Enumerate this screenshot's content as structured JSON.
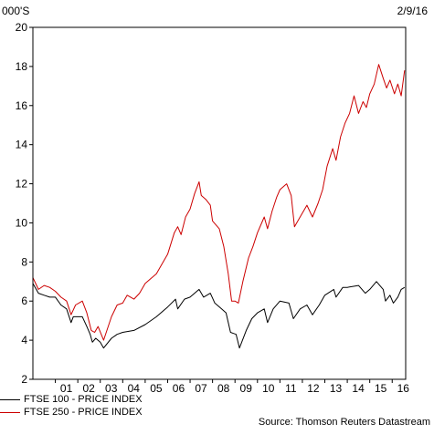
{
  "chart_data": {
    "type": "line",
    "unit_label": "000'S",
    "date_label": "2/9/16",
    "ylim": [
      2,
      20
    ],
    "yticks": [
      2,
      4,
      6,
      8,
      10,
      12,
      14,
      16,
      18,
      20
    ],
    "xlim": [
      2000.0,
      2016.6
    ],
    "xtick_labels": [
      {
        "label": "01",
        "x": 2001
      },
      {
        "label": "02",
        "x": 2002
      },
      {
        "label": "03",
        "x": 2003
      },
      {
        "label": "04",
        "x": 2004
      },
      {
        "label": "05",
        "x": 2005
      },
      {
        "label": "06",
        "x": 2006
      },
      {
        "label": "07",
        "x": 2007
      },
      {
        "label": "08",
        "x": 2008
      },
      {
        "label": "09",
        "x": 2009
      },
      {
        "label": "10",
        "x": 2010
      },
      {
        "label": "11",
        "x": 2011
      },
      {
        "label": "12",
        "x": 2012
      },
      {
        "label": "13",
        "x": 2013
      },
      {
        "label": "14",
        "x": 2014
      },
      {
        "label": "15",
        "x": 2015
      },
      {
        "label": "16",
        "x": 2016
      }
    ],
    "series": [
      {
        "name": "FTSE 100 - PRICE INDEX",
        "color": "#000000",
        "points": [
          [
            2000.0,
            6.9
          ],
          [
            2000.25,
            6.4
          ],
          [
            2000.5,
            6.3
          ],
          [
            2000.75,
            6.2
          ],
          [
            2001.0,
            6.2
          ],
          [
            2001.25,
            5.8
          ],
          [
            2001.5,
            5.6
          ],
          [
            2001.7,
            4.9
          ],
          [
            2001.8,
            5.2
          ],
          [
            2001.95,
            5.2
          ],
          [
            2002.2,
            5.2
          ],
          [
            2002.4,
            4.7
          ],
          [
            2002.55,
            4.3
          ],
          [
            2002.65,
            3.9
          ],
          [
            2002.8,
            4.1
          ],
          [
            2003.0,
            3.9
          ],
          [
            2003.15,
            3.6
          ],
          [
            2003.5,
            4.1
          ],
          [
            2003.75,
            4.3
          ],
          [
            2004.0,
            4.4
          ],
          [
            2004.5,
            4.5
          ],
          [
            2005.0,
            4.8
          ],
          [
            2005.5,
            5.2
          ],
          [
            2006.0,
            5.7
          ],
          [
            2006.35,
            6.1
          ],
          [
            2006.45,
            5.6
          ],
          [
            2006.75,
            6.1
          ],
          [
            2007.0,
            6.2
          ],
          [
            2007.4,
            6.6
          ],
          [
            2007.6,
            6.2
          ],
          [
            2007.9,
            6.4
          ],
          [
            2008.1,
            5.9
          ],
          [
            2008.4,
            5.6
          ],
          [
            2008.6,
            5.4
          ],
          [
            2008.8,
            4.4
          ],
          [
            2009.05,
            4.3
          ],
          [
            2009.2,
            3.6
          ],
          [
            2009.5,
            4.5
          ],
          [
            2009.75,
            5.1
          ],
          [
            2010.0,
            5.4
          ],
          [
            2010.3,
            5.6
          ],
          [
            2010.45,
            4.9
          ],
          [
            2010.7,
            5.6
          ],
          [
            2011.0,
            6.0
          ],
          [
            2011.4,
            5.9
          ],
          [
            2011.6,
            5.1
          ],
          [
            2011.9,
            5.6
          ],
          [
            2012.2,
            5.8
          ],
          [
            2012.45,
            5.3
          ],
          [
            2012.75,
            5.8
          ],
          [
            2013.0,
            6.3
          ],
          [
            2013.4,
            6.6
          ],
          [
            2013.5,
            6.2
          ],
          [
            2013.8,
            6.7
          ],
          [
            2014.0,
            6.7
          ],
          [
            2014.5,
            6.8
          ],
          [
            2014.8,
            6.4
          ],
          [
            2015.0,
            6.6
          ],
          [
            2015.3,
            7.0
          ],
          [
            2015.6,
            6.6
          ],
          [
            2015.7,
            6.0
          ],
          [
            2015.9,
            6.3
          ],
          [
            2016.05,
            5.9
          ],
          [
            2016.25,
            6.2
          ],
          [
            2016.4,
            6.6
          ],
          [
            2016.55,
            6.7
          ]
        ]
      },
      {
        "name": "FTSE 250 - PRICE INDEX",
        "color": "#cc0000",
        "points": [
          [
            2000.0,
            7.2
          ],
          [
            2000.25,
            6.6
          ],
          [
            2000.5,
            6.8
          ],
          [
            2000.75,
            6.7
          ],
          [
            2001.0,
            6.5
          ],
          [
            2001.25,
            6.2
          ],
          [
            2001.5,
            6.0
          ],
          [
            2001.7,
            5.3
          ],
          [
            2001.9,
            5.8
          ],
          [
            2002.2,
            6.0
          ],
          [
            2002.4,
            5.4
          ],
          [
            2002.6,
            4.5
          ],
          [
            2002.75,
            4.4
          ],
          [
            2002.9,
            4.7
          ],
          [
            2003.15,
            4.0
          ],
          [
            2003.5,
            5.2
          ],
          [
            2003.75,
            5.8
          ],
          [
            2004.0,
            5.9
          ],
          [
            2004.2,
            6.3
          ],
          [
            2004.5,
            6.1
          ],
          [
            2004.75,
            6.4
          ],
          [
            2005.0,
            6.9
          ],
          [
            2005.5,
            7.4
          ],
          [
            2005.8,
            8.0
          ],
          [
            2006.0,
            8.4
          ],
          [
            2006.3,
            9.5
          ],
          [
            2006.45,
            9.8
          ],
          [
            2006.6,
            9.4
          ],
          [
            2006.8,
            10.3
          ],
          [
            2007.0,
            10.7
          ],
          [
            2007.2,
            11.5
          ],
          [
            2007.4,
            12.1
          ],
          [
            2007.5,
            11.4
          ],
          [
            2007.7,
            11.2
          ],
          [
            2007.9,
            10.9
          ],
          [
            2008.0,
            10.1
          ],
          [
            2008.3,
            9.7
          ],
          [
            2008.5,
            8.8
          ],
          [
            2008.7,
            7.4
          ],
          [
            2008.85,
            6.0
          ],
          [
            2009.0,
            6.0
          ],
          [
            2009.15,
            5.9
          ],
          [
            2009.35,
            7.0
          ],
          [
            2009.6,
            8.2
          ],
          [
            2009.8,
            8.8
          ],
          [
            2010.0,
            9.5
          ],
          [
            2010.3,
            10.3
          ],
          [
            2010.45,
            9.7
          ],
          [
            2010.65,
            10.6
          ],
          [
            2010.85,
            11.3
          ],
          [
            2011.0,
            11.7
          ],
          [
            2011.3,
            12.0
          ],
          [
            2011.5,
            11.4
          ],
          [
            2011.65,
            9.8
          ],
          [
            2011.8,
            10.1
          ],
          [
            2012.0,
            10.5
          ],
          [
            2012.2,
            10.9
          ],
          [
            2012.45,
            10.3
          ],
          [
            2012.7,
            11.0
          ],
          [
            2012.9,
            11.7
          ],
          [
            2013.1,
            12.9
          ],
          [
            2013.35,
            13.8
          ],
          [
            2013.5,
            13.2
          ],
          [
            2013.7,
            14.4
          ],
          [
            2013.9,
            15.1
          ],
          [
            2014.1,
            15.6
          ],
          [
            2014.3,
            16.5
          ],
          [
            2014.5,
            15.6
          ],
          [
            2014.7,
            16.2
          ],
          [
            2014.85,
            15.9
          ],
          [
            2015.0,
            16.6
          ],
          [
            2015.2,
            17.1
          ],
          [
            2015.4,
            18.1
          ],
          [
            2015.6,
            17.4
          ],
          [
            2015.75,
            16.9
          ],
          [
            2015.9,
            17.3
          ],
          [
            2016.1,
            16.6
          ],
          [
            2016.25,
            17.1
          ],
          [
            2016.4,
            16.5
          ],
          [
            2016.55,
            17.8
          ]
        ]
      }
    ],
    "legend_placement": "bottom-left",
    "grid": false
  },
  "legend": [
    {
      "name": "FTSE 100 - PRICE INDEX",
      "color": "#000000"
    },
    {
      "name": "FTSE 250 - PRICE INDEX",
      "color": "#cc0000"
    }
  ],
  "source": "Source: Thomson Reuters Datastream"
}
